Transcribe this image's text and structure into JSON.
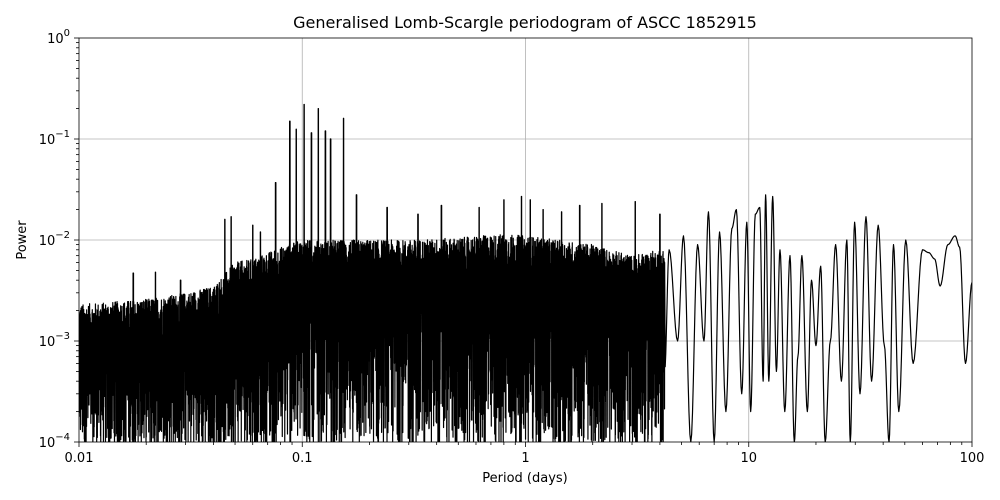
{
  "chart_data": {
    "type": "line",
    "title": "Generalised Lomb-Scargle periodogram of ASCC 1852915",
    "xlabel": "Period (days)",
    "ylabel": "Power",
    "xscale": "log",
    "yscale": "log",
    "xlim": [
      0.01,
      100
    ],
    "ylim": [
      0.0001,
      1
    ],
    "grid": true,
    "line_color": "#000000",
    "x_ticks": [
      {
        "value": 0.01,
        "label": "0.01"
      },
      {
        "value": 0.1,
        "label": "0.1"
      },
      {
        "value": 1,
        "label": "1"
      },
      {
        "value": 10,
        "label": "10"
      },
      {
        "value": 100,
        "label": "100"
      }
    ],
    "y_ticks": [
      {
        "value": 0.0001,
        "base": "10",
        "exp": "−4"
      },
      {
        "value": 0.001,
        "base": "10",
        "exp": "−3"
      },
      {
        "value": 0.01,
        "base": "10",
        "exp": "−2"
      },
      {
        "value": 0.1,
        "base": "10",
        "exp": "−1"
      },
      {
        "value": 1,
        "base": "10",
        "exp": "0"
      }
    ],
    "envelope": [
      {
        "x": 0.01,
        "y": 0.0023
      },
      {
        "x": 0.02,
        "y": 0.0026
      },
      {
        "x": 0.03,
        "y": 0.003
      },
      {
        "x": 0.04,
        "y": 0.0035
      },
      {
        "x": 0.05,
        "y": 0.006
      },
      {
        "x": 0.06,
        "y": 0.0065
      },
      {
        "x": 0.08,
        "y": 0.0085
      },
      {
        "x": 0.1,
        "y": 0.01
      },
      {
        "x": 0.2,
        "y": 0.01
      },
      {
        "x": 0.3,
        "y": 0.01
      },
      {
        "x": 0.5,
        "y": 0.0105
      },
      {
        "x": 0.8,
        "y": 0.0115
      },
      {
        "x": 1,
        "y": 0.011
      },
      {
        "x": 2,
        "y": 0.009
      },
      {
        "x": 3,
        "y": 0.007
      },
      {
        "x": 5,
        "y": 0.009
      }
    ],
    "peaks": [
      {
        "x": 0.0175,
        "y": 0.0047
      },
      {
        "x": 0.022,
        "y": 0.0048
      },
      {
        "x": 0.0285,
        "y": 0.004
      },
      {
        "x": 0.045,
        "y": 0.016
      },
      {
        "x": 0.048,
        "y": 0.017
      },
      {
        "x": 0.06,
        "y": 0.014
      },
      {
        "x": 0.065,
        "y": 0.012
      },
      {
        "x": 0.076,
        "y": 0.037
      },
      {
        "x": 0.088,
        "y": 0.15
      },
      {
        "x": 0.094,
        "y": 0.125
      },
      {
        "x": 0.102,
        "y": 0.22
      },
      {
        "x": 0.11,
        "y": 0.115
      },
      {
        "x": 0.118,
        "y": 0.2
      },
      {
        "x": 0.127,
        "y": 0.12
      },
      {
        "x": 0.134,
        "y": 0.1
      },
      {
        "x": 0.153,
        "y": 0.16
      },
      {
        "x": 0.175,
        "y": 0.028
      },
      {
        "x": 0.24,
        "y": 0.021
      },
      {
        "x": 0.33,
        "y": 0.018
      },
      {
        "x": 0.42,
        "y": 0.022
      },
      {
        "x": 0.62,
        "y": 0.021
      },
      {
        "x": 0.8,
        "y": 0.025
      },
      {
        "x": 0.96,
        "y": 0.027
      },
      {
        "x": 1.05,
        "y": 0.025
      },
      {
        "x": 1.2,
        "y": 0.02
      },
      {
        "x": 1.45,
        "y": 0.019
      },
      {
        "x": 1.75,
        "y": 0.022
      },
      {
        "x": 2.2,
        "y": 0.023
      },
      {
        "x": 3.1,
        "y": 0.024
      },
      {
        "x": 4.0,
        "y": 0.018
      },
      {
        "x": 6.6,
        "y": 0.019
      },
      {
        "x": 8.8,
        "y": 0.02
      },
      {
        "x": 11.2,
        "y": 0.021
      },
      {
        "x": 11.9,
        "y": 0.028
      },
      {
        "x": 12.8,
        "y": 0.027
      }
    ],
    "low_freq": [
      {
        "x": 4.2,
        "y": 0.0005
      },
      {
        "x": 4.4,
        "y": 0.008
      },
      {
        "x": 4.8,
        "y": 0.001
      },
      {
        "x": 5.1,
        "y": 0.011
      },
      {
        "x": 5.5,
        "y": 0.0001
      },
      {
        "x": 5.9,
        "y": 0.009
      },
      {
        "x": 6.3,
        "y": 0.001
      },
      {
        "x": 6.6,
        "y": 0.019
      },
      {
        "x": 7.0,
        "y": 0.0001
      },
      {
        "x": 7.4,
        "y": 0.012
      },
      {
        "x": 7.9,
        "y": 0.0002
      },
      {
        "x": 8.4,
        "y": 0.013
      },
      {
        "x": 8.8,
        "y": 0.02
      },
      {
        "x": 9.3,
        "y": 0.0003
      },
      {
        "x": 9.8,
        "y": 0.015
      },
      {
        "x": 10.2,
        "y": 0.0002
      },
      {
        "x": 10.7,
        "y": 0.018
      },
      {
        "x": 11.2,
        "y": 0.021
      },
      {
        "x": 11.6,
        "y": 0.0004
      },
      {
        "x": 11.9,
        "y": 0.028
      },
      {
        "x": 12.3,
        "y": 0.0004
      },
      {
        "x": 12.8,
        "y": 0.027
      },
      {
        "x": 13.3,
        "y": 0.0005
      },
      {
        "x": 13.8,
        "y": 0.008
      },
      {
        "x": 14.5,
        "y": 0.0002
      },
      {
        "x": 15.3,
        "y": 0.007
      },
      {
        "x": 16.0,
        "y": 0.0001
      },
      {
        "x": 16.6,
        "y": 0.0007
      },
      {
        "x": 17.3,
        "y": 0.007
      },
      {
        "x": 18.3,
        "y": 0.0002
      },
      {
        "x": 19.1,
        "y": 0.004
      },
      {
        "x": 20.0,
        "y": 0.0009
      },
      {
        "x": 21.0,
        "y": 0.0055
      },
      {
        "x": 22.0,
        "y": 0.0001
      },
      {
        "x": 23.2,
        "y": 0.001
      },
      {
        "x": 24.5,
        "y": 0.009
      },
      {
        "x": 26.0,
        "y": 0.0004
      },
      {
        "x": 27.5,
        "y": 0.01
      },
      {
        "x": 28.5,
        "y": 0.0001
      },
      {
        "x": 29.8,
        "y": 0.015
      },
      {
        "x": 31.5,
        "y": 0.0003
      },
      {
        "x": 33.5,
        "y": 0.017
      },
      {
        "x": 35.5,
        "y": 0.0004
      },
      {
        "x": 38.0,
        "y": 0.014
      },
      {
        "x": 40.5,
        "y": 0.0009
      },
      {
        "x": 42.5,
        "y": 0.0001
      },
      {
        "x": 44.5,
        "y": 0.009
      },
      {
        "x": 47.0,
        "y": 0.0002
      },
      {
        "x": 50.5,
        "y": 0.01
      },
      {
        "x": 54.5,
        "y": 0.0006
      },
      {
        "x": 60.0,
        "y": 0.008
      },
      {
        "x": 64.0,
        "y": 0.0075
      },
      {
        "x": 68.0,
        "y": 0.0065
      },
      {
        "x": 72.0,
        "y": 0.0035
      },
      {
        "x": 78.0,
        "y": 0.009
      },
      {
        "x": 84.0,
        "y": 0.011
      },
      {
        "x": 88.0,
        "y": 0.0085
      },
      {
        "x": 93.5,
        "y": 0.0006
      },
      {
        "x": 100.0,
        "y": 0.0038
      }
    ]
  }
}
